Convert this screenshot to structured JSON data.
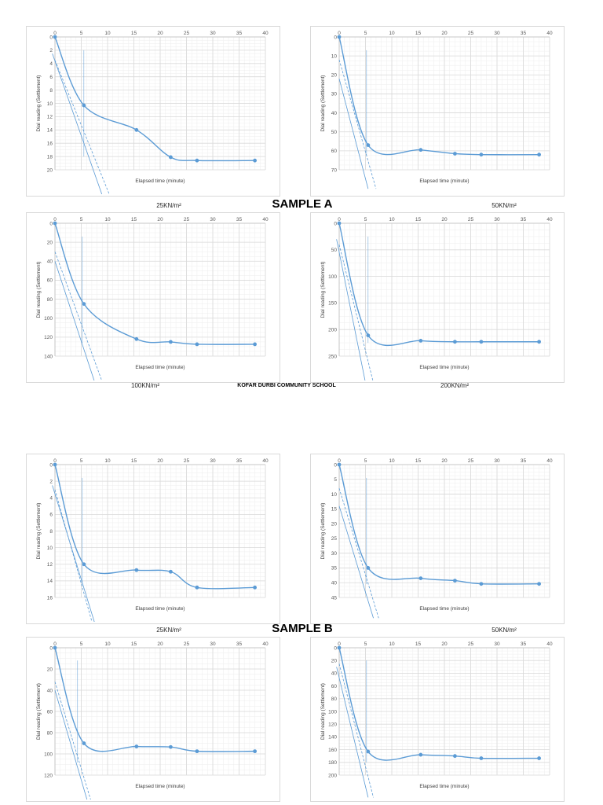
{
  "labels": {
    "sample_a": "SAMPLE A",
    "sample_b": "SAMPLE B",
    "school": "KOFAR DURBI COMMUNITY SCHOOL"
  },
  "colors": {
    "series": "#5b9bd5",
    "grid_major": "#d9d9d9",
    "grid_minor": "#eeeeee"
  },
  "chart_data": [
    {
      "type": "line",
      "title": "",
      "caption": "25KN/m²",
      "xlabel": "Elapsed time (minute)",
      "ylabel": "Dial reading (Settlement)",
      "xlim": [
        0,
        40
      ],
      "ylim": [
        0,
        20
      ],
      "xtick_step": 5,
      "ytick_step": 2,
      "y_inverted": true,
      "x": [
        0,
        5.5,
        15.5,
        22,
        27,
        38
      ],
      "y": [
        0,
        10.3,
        14,
        18.1,
        18.6,
        18.6
      ],
      "tangents": [
        [
          [
            -0.5,
            2.5
          ],
          [
            9.5,
            25
          ]
        ],
        [
          [
            0,
            3.5
          ],
          [
            11,
            25
          ]
        ]
      ],
      "marker_x": 5.5
    },
    {
      "type": "line",
      "title": "",
      "caption": "50KN/m²",
      "xlabel": "Elapsed time (minute)",
      "ylabel": "Dial reading (Settlement)",
      "xlim": [
        0,
        40
      ],
      "ylim": [
        0,
        70
      ],
      "xtick_step": 5,
      "ytick_step": 10,
      "y_inverted": true,
      "x": [
        0,
        5.5,
        15.5,
        22,
        27,
        38
      ],
      "y": [
        0,
        57,
        59.5,
        61.5,
        62,
        62
      ],
      "tangents": [
        [
          [
            0,
            22
          ],
          [
            5.5,
            80
          ]
        ],
        [
          [
            0,
            12
          ],
          [
            7,
            80
          ]
        ]
      ],
      "marker_x": 5.2
    },
    {
      "type": "line",
      "title": "",
      "caption": "100KN/m²",
      "xlabel": "Elapsed time (minute)",
      "ylabel": "Dial reading (Settlement)",
      "xlim": [
        0,
        40
      ],
      "ylim": [
        0,
        140
      ],
      "xtick_step": 5,
      "ytick_step": 20,
      "y_inverted": true,
      "x": [
        0,
        5.5,
        15.5,
        22,
        27,
        38
      ],
      "y": [
        0,
        85,
        122,
        125,
        127.5,
        127.5
      ],
      "tangents": [
        [
          [
            0,
            40
          ],
          [
            8,
            175
          ]
        ],
        [
          [
            0,
            30
          ],
          [
            9.5,
            175
          ]
        ]
      ],
      "marker_x": 5.2
    },
    {
      "type": "line",
      "title": "",
      "caption": "200KN/m²",
      "xlabel": "Elapsed time (minute)",
      "ylabel": "Dial reading (Settlement)",
      "xlim": [
        0,
        40
      ],
      "ylim": [
        0,
        250
      ],
      "xtick_step": 5,
      "ytick_step": 50,
      "y_inverted": true,
      "x": [
        0,
        5.5,
        15.5,
        22,
        27,
        38
      ],
      "y": [
        0,
        211,
        221,
        223,
        223,
        223
      ],
      "tangents": [
        [
          [
            -0.5,
            30
          ],
          [
            5,
            300
          ]
        ],
        [
          [
            0,
            40
          ],
          [
            6.5,
            300
          ]
        ]
      ],
      "marker_x": 5.5
    },
    {
      "type": "line",
      "title": "",
      "caption": "25KN/m²",
      "xlabel": "Elapsed time (minute)",
      "ylabel": "Dial reading (Settlement)",
      "xlim": [
        0,
        40
      ],
      "ylim": [
        0,
        16
      ],
      "xtick_step": 5,
      "ytick_step": 2,
      "y_inverted": true,
      "x": [
        0,
        5.5,
        15.5,
        22,
        27,
        38
      ],
      "y": [
        0,
        12,
        12.7,
        12.9,
        14.8,
        14.8
      ],
      "tangents": [
        [
          [
            -0.5,
            2.5
          ],
          [
            8,
            20
          ]
        ],
        [
          [
            0,
            3
          ],
          [
            7.5,
            20
          ]
        ]
      ],
      "marker_x": 5.2
    },
    {
      "type": "line",
      "title": "",
      "caption": "50KN/m²",
      "xlabel": "Elapsed time (minute)",
      "ylabel": "Dial reading (Settlement)",
      "xlim": [
        0,
        40
      ],
      "ylim": [
        0,
        45
      ],
      "xtick_step": 5,
      "ytick_step": 5,
      "y_inverted": true,
      "x": [
        0,
        5.5,
        15.5,
        22,
        27,
        38
      ],
      "y": [
        0,
        35,
        38.5,
        39.3,
        40.4,
        40.4
      ],
      "tangents": [
        [
          [
            0,
            14
          ],
          [
            6.5,
            52
          ]
        ],
        [
          [
            0,
            8
          ],
          [
            7.5,
            52
          ]
        ]
      ],
      "marker_x": 5.2
    },
    {
      "type": "line",
      "title": "",
      "caption": "",
      "xlabel": "Elapsed time (minute)",
      "ylabel": "Dial reading (Settlement)",
      "xlim": [
        0,
        40
      ],
      "ylim": [
        0,
        120
      ],
      "xtick_step": 5,
      "ytick_step": 20,
      "y_inverted": true,
      "x": [
        0,
        5.5,
        15.5,
        22,
        27,
        38
      ],
      "y": [
        0,
        90,
        93,
        93.5,
        97.5,
        97.5
      ],
      "tangents": [
        [
          [
            0,
            40
          ],
          [
            6.5,
            150
          ]
        ],
        [
          [
            0,
            32
          ],
          [
            7.2,
            150
          ]
        ]
      ],
      "marker_x": 4.3
    },
    {
      "type": "line",
      "title": "",
      "caption": "",
      "xlabel": "Elapsed time (minute)",
      "ylabel": "Dial reading (Settlement)",
      "xlim": [
        0,
        40
      ],
      "ylim": [
        0,
        200
      ],
      "xtick_step": 5,
      "ytick_step": 20,
      "y_inverted": true,
      "x": [
        0,
        5.5,
        15.5,
        22,
        27,
        38
      ],
      "y": [
        0,
        163,
        168,
        170,
        173.5,
        173.5
      ],
      "tangents": [
        [
          [
            -0.5,
            30
          ],
          [
            5.5,
            235
          ]
        ],
        [
          [
            0,
            25
          ],
          [
            6.5,
            235
          ]
        ]
      ],
      "marker_x": 5.2
    }
  ]
}
